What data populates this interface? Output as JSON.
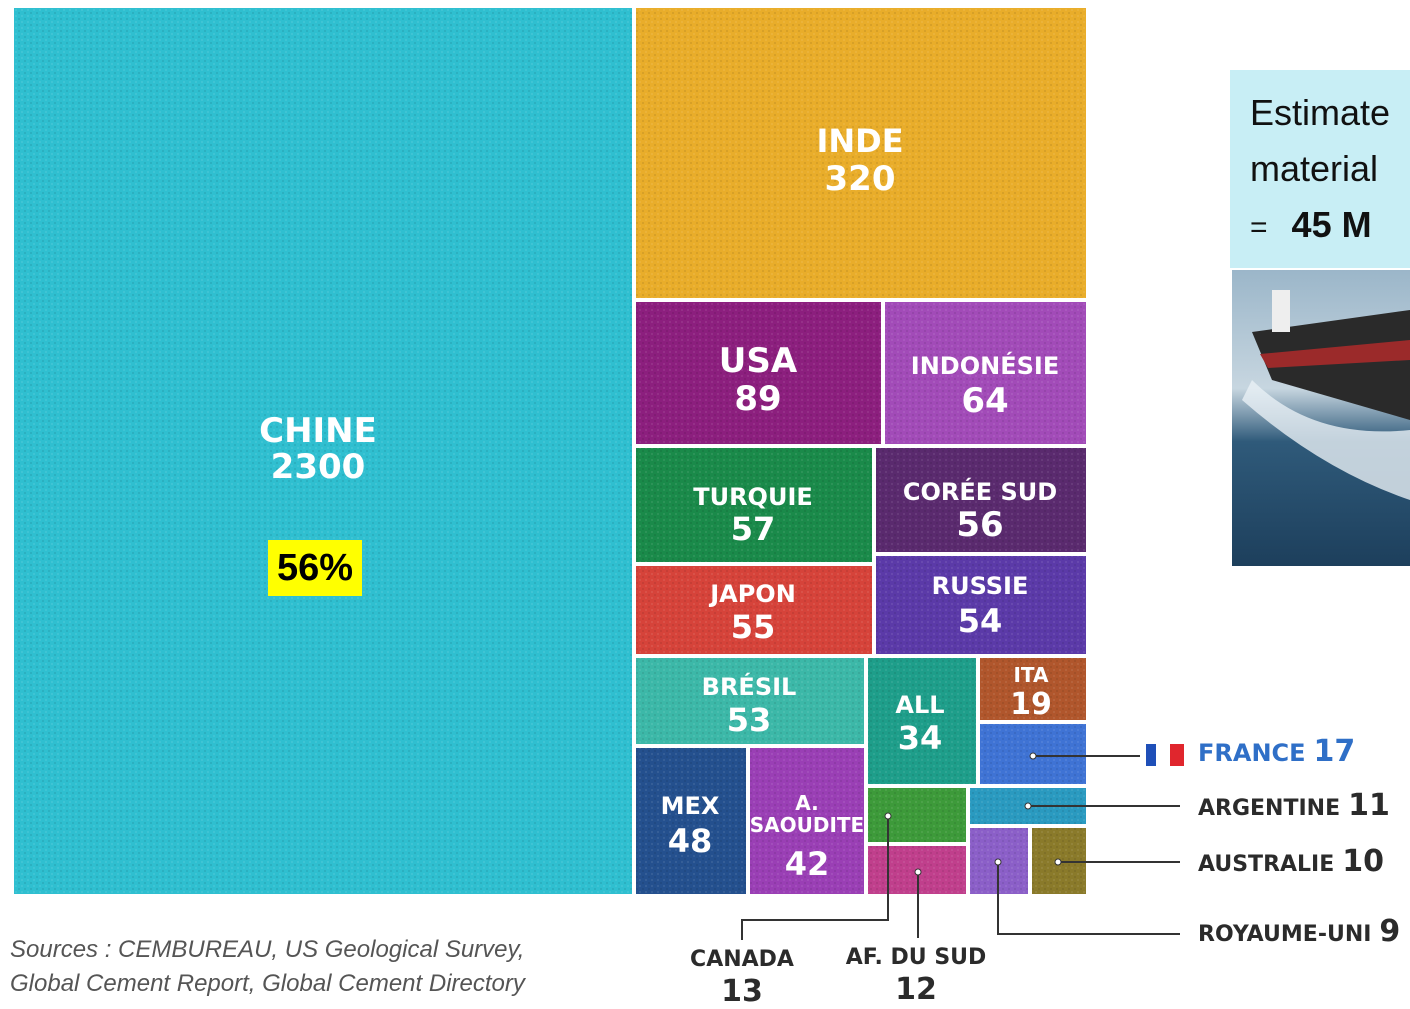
{
  "chart_data": {
    "type": "treemap",
    "unit": "",
    "items": [
      {
        "name": "CHINE",
        "value": 2300,
        "color": "#2fbfd0"
      },
      {
        "name": "INDE",
        "value": 320,
        "color": "#e9ad2a"
      },
      {
        "name": "USA",
        "value": 89,
        "color": "#8c1f7e"
      },
      {
        "name": "INDONÉSIE",
        "value": 64,
        "color": "#a24bb8"
      },
      {
        "name": "TURQUIE",
        "value": 57,
        "color": "#1a8a4a"
      },
      {
        "name": "CORÉE SUD",
        "value": 56,
        "color": "#5a2a6e"
      },
      {
        "name": "JAPON",
        "value": 55,
        "color": "#d6433a"
      },
      {
        "name": "RUSSIE",
        "value": 54,
        "color": "#5b3aa8"
      },
      {
        "name": "BRÉSIL",
        "value": 53,
        "color": "#3cb8a8"
      },
      {
        "name": "ALL",
        "value": 34,
        "color": "#1e9e8a"
      },
      {
        "name": "ITA",
        "value": 19,
        "color": "#b0562c"
      },
      {
        "name": "MEX",
        "value": 48,
        "color": "#24508e"
      },
      {
        "name": "A. SAOUDITE",
        "value": 42,
        "color": "#9a3fb5"
      },
      {
        "name": "FRANCE",
        "value": 17,
        "color": "#3f73d4"
      },
      {
        "name": "ARGENTINE",
        "value": 11,
        "color": "#2a9ac0"
      },
      {
        "name": "CANADA",
        "value": 13,
        "color": "#3d9a3a"
      },
      {
        "name": "AF. DU SUD",
        "value": 12,
        "color": "#c03f8c"
      },
      {
        "name": "ROYAUME-UNI",
        "value": 9,
        "color": "#8b5fc8"
      },
      {
        "name": "AUSTRALIE",
        "value": 10,
        "color": "#8a7a2a"
      }
    ],
    "highlight": {
      "label": "56%",
      "target": "CHINE"
    }
  },
  "note": {
    "line1": "Estimate",
    "line2": "material",
    "line3_prefix": "=",
    "line3_value": "45 M"
  },
  "sources": {
    "line1": "Sources : CEMBUREAU, US Geological Survey,",
    "line2": "Global Cement Report, Global Cement Directory"
  },
  "colors": {
    "callout_france": "#2f6fc7",
    "callout_dark": "#2b2b2b",
    "leader": "#333333",
    "flag_blue": "#1f4fb8",
    "flag_red": "#e0262d",
    "note_bg": "#c8eef5",
    "highlight_bg": "#ffff00"
  }
}
